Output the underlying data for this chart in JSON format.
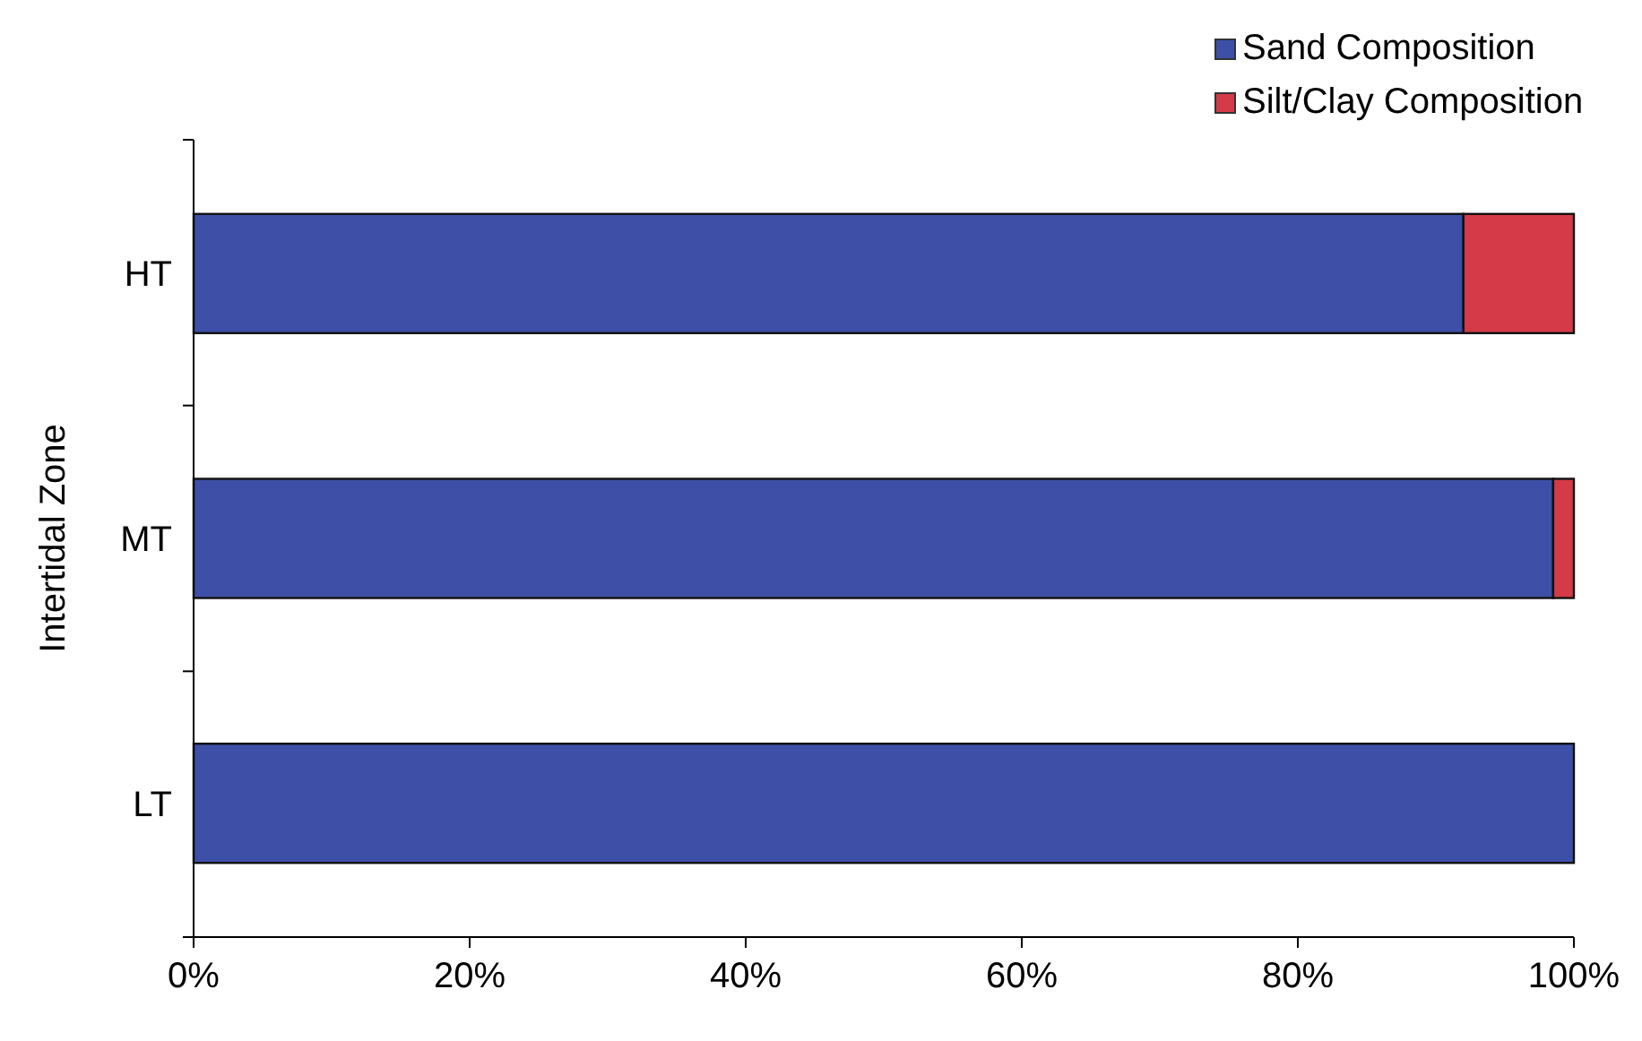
{
  "chart_data": {
    "type": "bar",
    "orientation": "horizontal",
    "stacked": true,
    "ylabel": "Intertidal Zone",
    "categories": [
      "HT",
      "MT",
      "LT"
    ],
    "series": [
      {
        "name": "Sand Composition",
        "color": "#3d4fa6",
        "values": [
          92,
          98.5,
          100
        ]
      },
      {
        "name": "Silt/Clay Composition",
        "color": "#d43a48",
        "values": [
          8,
          1.5,
          0
        ]
      }
    ],
    "xlim": [
      0,
      100
    ],
    "xticks": [
      {
        "value": 0,
        "label": "0%"
      },
      {
        "value": 20,
        "label": "20%"
      },
      {
        "value": 40,
        "label": "40%"
      },
      {
        "value": 60,
        "label": "60%"
      },
      {
        "value": 80,
        "label": "80%"
      },
      {
        "value": 100,
        "label": "100%"
      }
    ],
    "legend": "top right",
    "grid": false
  }
}
